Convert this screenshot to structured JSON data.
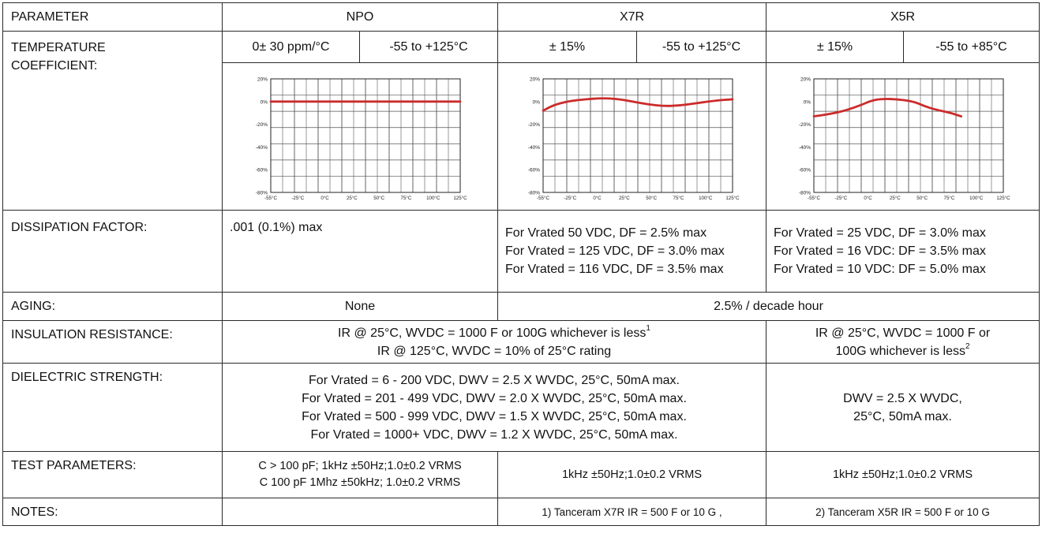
{
  "header": {
    "parameter": "PARAMETER",
    "npo": "NPO",
    "x7r": "X7R",
    "x5r": "X5R"
  },
  "temperature": {
    "label_line1": "TEMPERATURE",
    "label_line2": "COEFFICIENT:",
    "npo_tol": "0± 30 ppm/°C",
    "npo_range": "-55 to +125°C",
    "x7r_tol": "± 15%",
    "x7r_range": "-55 to +125°C",
    "x5r_tol": "± 15%",
    "x5r_range": "-55 to +85°C"
  },
  "chart_data": [
    {
      "type": "line",
      "series": [
        {
          "name": "",
          "x": [
            -55,
            125
          ],
          "y": [
            0,
            0
          ]
        }
      ],
      "x_ticks": [
        "-55°C",
        "-25°C",
        "0°C",
        "25°C",
        "50°C",
        "75°C",
        "100°C",
        "125°C"
      ],
      "y_ticks": [
        "20%",
        "0%",
        "-20%",
        "-40%",
        "-60%",
        "-80%"
      ],
      "xlim": [
        -55,
        125
      ],
      "ylim": [
        -80,
        20
      ],
      "grid": true,
      "color": "#cc2b2b"
    },
    {
      "type": "line",
      "series": [
        {
          "name": "",
          "x": [
            -55,
            -45,
            -30,
            -15,
            0,
            15,
            30,
            45,
            60,
            75,
            90,
            110,
            125
          ],
          "y": [
            -8,
            -3,
            0.5,
            2,
            3,
            2.5,
            0,
            -2.5,
            -4,
            -3.5,
            -1.5,
            1,
            2
          ]
        }
      ],
      "x_ticks": [
        "-55°C",
        "-25°C",
        "0°C",
        "25°C",
        "50°C",
        "75°C",
        "100°C",
        "125°C"
      ],
      "y_ticks": [
        "20%",
        "0%",
        "-20%",
        "-40%",
        "-60%",
        "-80%"
      ],
      "xlim": [
        -55,
        125
      ],
      "ylim": [
        -80,
        20
      ],
      "grid": true,
      "color": "#cc2b2b"
    },
    {
      "type": "line",
      "series": [
        {
          "name": "",
          "x": [
            -55,
            -40,
            -25,
            -10,
            0,
            10,
            25,
            40,
            50,
            60,
            75,
            85
          ],
          "y": [
            -13,
            -11,
            -8,
            -3,
            1,
            2.5,
            2,
            0,
            -4,
            -7,
            -10,
            -13
          ]
        }
      ],
      "x_ticks": [
        "-55°C",
        "-25°C",
        "0°C",
        "25°C",
        "50°C",
        "75°C",
        "100°C",
        "125°C"
      ],
      "y_ticks": [
        "20%",
        "0%",
        "-20%",
        "-40%",
        "-60%",
        "-80%"
      ],
      "xlim": [
        -55,
        125
      ],
      "ylim": [
        -80,
        20
      ],
      "grid": true,
      "color": "#cc2b2b"
    }
  ],
  "dissipation": {
    "label": "DISSIPATION  FACTOR:",
    "npo": ".001 (0.1%) max",
    "x7r": [
      "For Vrated   50 VDC, DF = 2.5% max",
      "For Vrated = 125 VDC, DF = 3.0% max",
      "For Vrated = 116 VDC, DF = 3.5% max"
    ],
    "x5r": [
      "For Vrated = 25 VDC, DF = 3.0% max",
      "For Vrated = 16 VDC: DF = 3.5% max",
      "For Vrated = 10 VDC: DF = 5.0% max"
    ]
  },
  "aging": {
    "label": "AGING:",
    "npo": "None",
    "x7r_x5r": "2.5% / decade hour"
  },
  "insulation": {
    "label": "INSULATION RESISTANCE:",
    "npo_x7r_line1": "IR @ 25°C, WVDC = 1000 F or 100G  whichever is less",
    "npo_x7r_sup": "1",
    "npo_x7r_line2": "IR @ 125°C, WVDC = 10% of 25°C rating",
    "x5r_line1": "IR @ 25°C, WVDC = 1000 F or",
    "x5r_line2": "100G  whichever is less",
    "x5r_sup": "2"
  },
  "dielectric": {
    "label": "DIELECTRIC STRENGTH:",
    "npo_x7r": [
      "For Vrated = 6 - 200 VDC, DWV = 2.5 X WVDC, 25°C, 50mA max.",
      "For Vrated = 201 - 499 VDC, DWV = 2.0 X WVDC, 25°C, 50mA max.",
      "For Vrated = 500 - 999 VDC, DWV = 1.5 X WVDC, 25°C, 50mA max.",
      "For Vrated = 1000+ VDC, DWV = 1.2 X WVDC, 25°C, 50mA max."
    ],
    "x5r": [
      "DWV = 2.5 X WVDC,",
      "25°C, 50mA max."
    ]
  },
  "test": {
    "label": "TEST PARAMETERS:",
    "npo": [
      "C > 100 pF; 1kHz ±50Hz;1.0±0.2 VRMS",
      "C   100 pF 1Mhz ±50kHz; 1.0±0.2 VRMS"
    ],
    "x7r": "1kHz ±50Hz;1.0±0.2 VRMS",
    "x5r": "1kHz ±50Hz;1.0±0.2 VRMS"
  },
  "notes": {
    "label": "NOTES:",
    "x7r": "1) Tanceram X7R IR = 500  F or 10 G ,",
    "x5r": "2) Tanceram X5R IR = 500  F or 10 G"
  }
}
